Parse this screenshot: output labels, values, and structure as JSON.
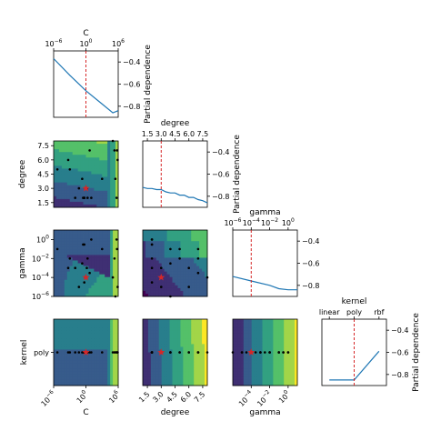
{
  "chart_data": {
    "type": "partial-dependence-matrix",
    "colors": {
      "line": "#1f77b4",
      "marker": "#d62728",
      "points": "#000000",
      "colormap": [
        "#440154",
        "#3b528b",
        "#21908d",
        "#5dc863",
        "#fde725"
      ]
    },
    "variables": [
      {
        "name": "C",
        "scale": "log",
        "ticks": [
          "10^-6",
          "10^0",
          "10^6"
        ],
        "best": 1.0
      },
      {
        "name": "degree",
        "scale": "linear",
        "ticks": [
          "1.5",
          "3.0",
          "4.5",
          "6.0",
          "7.5"
        ],
        "best": 3.0
      },
      {
        "name": "gamma",
        "scale": "log",
        "ticks": [
          "10^-6",
          "10^-4",
          "10^-2",
          "10^0"
        ],
        "best": 0.0001
      },
      {
        "name": "kernel",
        "scale": "categorical",
        "ticks": [
          "linear",
          "poly",
          "rbf"
        ],
        "best": "poly"
      }
    ],
    "diagonal": [
      {
        "variable": "C",
        "ylabel": "Partial dependence",
        "yticks": [
          "-0.4",
          "-0.6",
          "-0.8"
        ],
        "x": [
          -6,
          -3,
          0,
          3,
          5,
          6
        ],
        "y": [
          -0.37,
          -0.52,
          -0.66,
          -0.78,
          -0.86,
          -0.84
        ]
      },
      {
        "variable": "degree",
        "ylabel": "Partial dependence",
        "yticks": [
          "-0.4",
          "-0.6",
          "-0.8"
        ],
        "x": [
          1,
          1.5,
          2,
          2.5,
          3,
          3.5,
          4,
          4.5,
          5,
          5.5,
          6,
          6.5,
          7,
          7.5,
          8
        ],
        "y": [
          -0.72,
          -0.73,
          -0.73,
          -0.74,
          -0.74,
          -0.76,
          -0.77,
          -0.77,
          -0.79,
          -0.79,
          -0.81,
          -0.81,
          -0.83,
          -0.84,
          -0.86
        ]
      },
      {
        "variable": "gamma",
        "ylabel": "",
        "yticks": [
          "-0.4",
          "-0.6",
          "-0.8"
        ],
        "x": [
          -6,
          -4,
          -2,
          -1,
          0,
          1
        ],
        "y": [
          -0.72,
          -0.76,
          -0.8,
          -0.83,
          -0.84,
          -0.84
        ]
      },
      {
        "variable": "kernel",
        "ylabel": "Partial dependence",
        "yticks": [
          "-0.4",
          "-0.6",
          "-0.8"
        ],
        "x": [
          0,
          1,
          2
        ],
        "y": [
          -0.85,
          -0.85,
          -0.59
        ]
      }
    ],
    "contours": [
      {
        "x": "C",
        "y": "degree"
      },
      {
        "x": "C",
        "y": "gamma"
      },
      {
        "x": "degree",
        "y": "gamma"
      },
      {
        "x": "C",
        "y": "kernel"
      },
      {
        "x": "degree",
        "y": "kernel"
      },
      {
        "x": "gamma",
        "y": "kernel"
      }
    ],
    "samples": [
      {
        "C": 0.8,
        "degree": 3,
        "gamma": 0.0001,
        "kernel": "poly"
      },
      {
        "C": 0.5,
        "degree": 2,
        "gamma": 0.3,
        "kernel": "poly"
      },
      {
        "C": 2.0,
        "degree": 2,
        "gamma": 0.01,
        "kernel": "poly"
      },
      {
        "C": 0.3,
        "degree": 2,
        "gamma": 0.3,
        "kernel": "poly"
      },
      {
        "C": 1.5,
        "degree": 3,
        "gamma": 0.001,
        "kernel": "poly"
      },
      {
        "C": 0.05,
        "degree": 3,
        "gamma": 1e-05,
        "kernel": "poly"
      },
      {
        "C": 200000,
        "degree": 7,
        "gamma": 0.01,
        "kernel": "poly"
      },
      {
        "C": 500000,
        "degree": 2,
        "gamma": 1,
        "kernel": "poly"
      },
      {
        "C": 300000,
        "degree": 4,
        "gamma": 1e-06,
        "kernel": "poly"
      },
      {
        "C": 600000,
        "degree": 7,
        "gamma": 0.1,
        "kernel": "poly"
      },
      {
        "C": 800000,
        "degree": 6,
        "gamma": 1e-05,
        "kernel": "poly"
      },
      {
        "C": 1000,
        "degree": 4,
        "gamma": 0.1,
        "kernel": "poly"
      },
      {
        "C": 0.001,
        "degree": 5,
        "gamma": 0.01,
        "kernel": "poly"
      },
      {
        "C": 10,
        "degree": 2,
        "gamma": 1,
        "kernel": "poly"
      },
      {
        "C": 0.01,
        "degree": 2,
        "gamma": 0.001,
        "kernel": "poly"
      },
      {
        "C": 0.5,
        "degree": 2,
        "gamma": 3e-05,
        "kernel": "poly"
      },
      {
        "C": 5,
        "degree": 7,
        "gamma": 0.0003,
        "kernel": "poly"
      },
      {
        "C": 0.2,
        "degree": 4,
        "gamma": 0.003,
        "kernel": "poly"
      },
      {
        "C": 100000,
        "degree": 8,
        "gamma": 0.0001,
        "kernel": "poly"
      },
      {
        "C": 5e-06,
        "degree": 5,
        "gamma": 0.1,
        "kernel": "poly"
      },
      {
        "C": 0.0005,
        "degree": 6,
        "gamma": 0.001,
        "kernel": "poly"
      }
    ]
  }
}
